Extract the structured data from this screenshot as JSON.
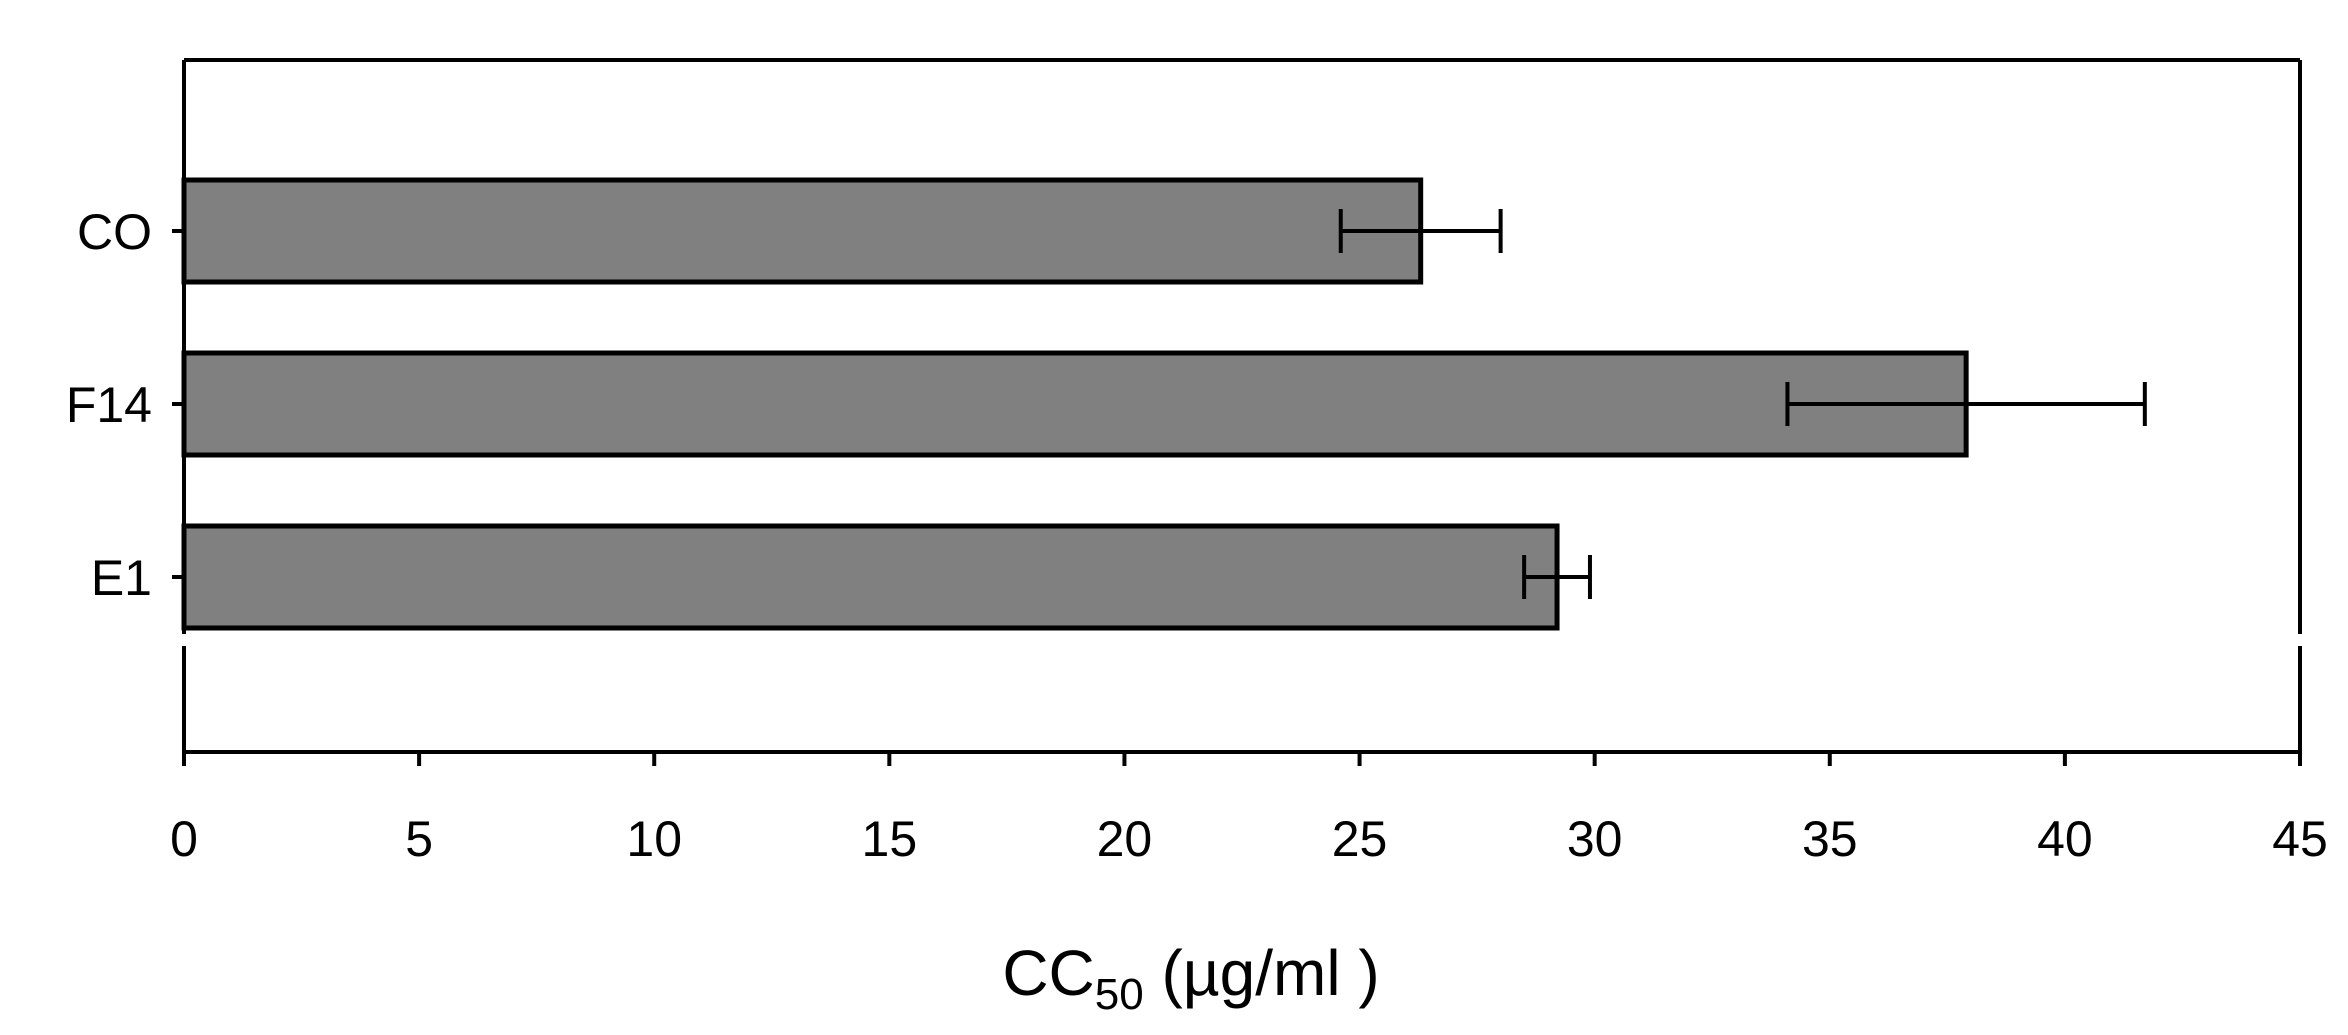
{
  "chart_data": {
    "type": "bar",
    "orientation": "horizontal",
    "categories": [
      "CO",
      "F14",
      "E1"
    ],
    "values": [
      26.3,
      37.9,
      29.2
    ],
    "errors": [
      1.7,
      3.8,
      0.7
    ],
    "xlabel": {
      "main": "CC",
      "subscript": "50",
      "units": " (µg/ml )"
    },
    "ylabel": "",
    "xlim": [
      0,
      45
    ],
    "xticks": [
      0,
      5,
      10,
      15,
      20,
      25,
      30,
      35,
      40,
      45
    ],
    "xtick_labels": [
      "0",
      "5",
      "10",
      "15",
      "20",
      "25",
      "30",
      "35",
      "40",
      "45"
    ],
    "grid": false,
    "legend": "none",
    "colors": {
      "bar_fill": "#808080",
      "bar_stroke": "#000000",
      "axis": "#000000",
      "background": "#ffffff"
    }
  }
}
